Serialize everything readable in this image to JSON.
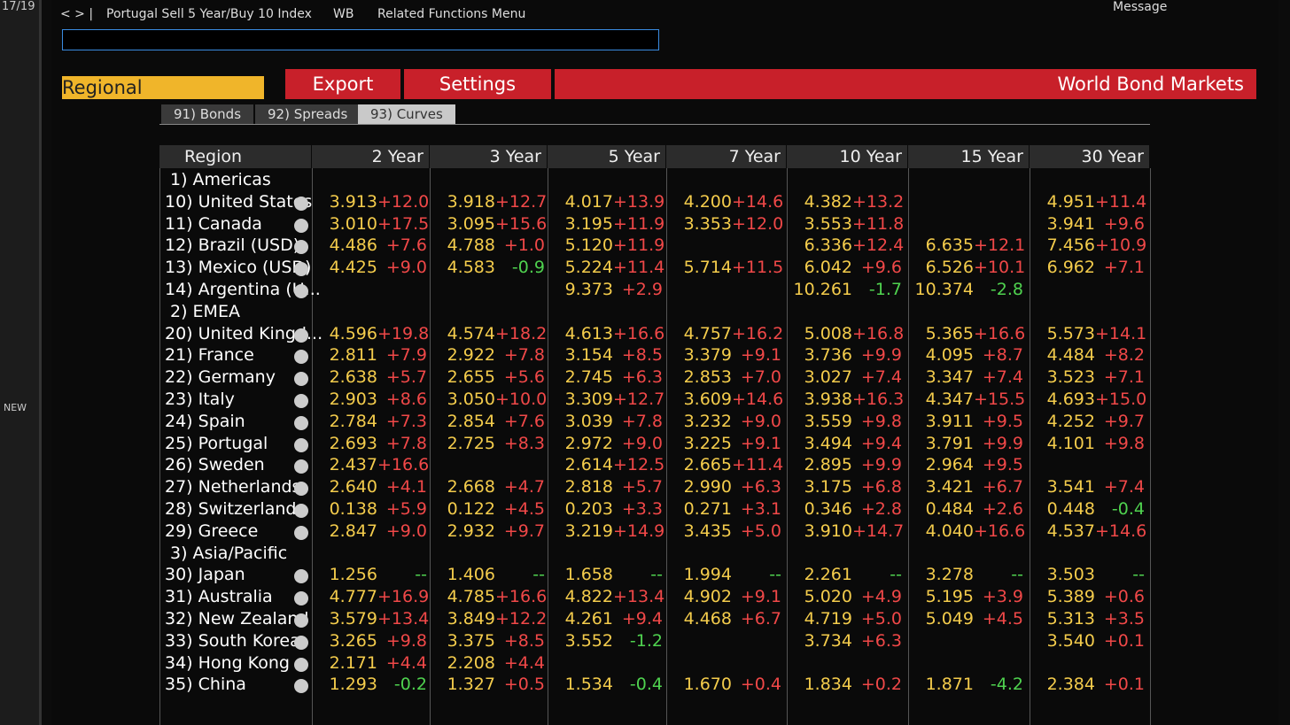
{
  "side": {
    "counter": "17/19",
    "badge": "NEW"
  },
  "toolbar": {
    "title": "Portugal Sell 5 Year/Buy 10 Index",
    "menu1": "WB",
    "menu2": "Related Functions Menu",
    "message": "Message"
  },
  "actions": {
    "dropdown": "Regional",
    "export": "Export",
    "settings": "Settings",
    "page_title": "World Bond Markets"
  },
  "tabs": [
    "91) Bonds",
    "92) Spreads",
    "93) Curves"
  ],
  "table": {
    "header": [
      "Region",
      "2 Year",
      "3 Year",
      "5 Year",
      "7 Year",
      "10 Year",
      "15 Year",
      "30 Year"
    ],
    "groups": [
      {
        "name": "1) Americas",
        "rows": [
          {
            "name": "10) United States",
            "cells": [
              [
                "3.913",
                "+12.0"
              ],
              [
                "3.918",
                "+12.7"
              ],
              [
                "4.017",
                "+13.9"
              ],
              [
                "4.200",
                "+14.6"
              ],
              [
                "4.382",
                "+13.2"
              ],
              null,
              [
                "4.951",
                "+11.4"
              ]
            ]
          },
          {
            "name": "11) Canada",
            "cells": [
              [
                "3.010",
                "+17.5"
              ],
              [
                "3.095",
                "+15.6"
              ],
              [
                "3.195",
                "+11.9"
              ],
              [
                "3.353",
                "+12.0"
              ],
              [
                "3.553",
                "+11.8"
              ],
              null,
              [
                "3.941",
                "+9.6"
              ]
            ]
          },
          {
            "name": "12) Brazil (USD)",
            "cells": [
              [
                "4.486",
                "+7.6"
              ],
              [
                "4.788",
                "+1.0"
              ],
              [
                "5.120",
                "+11.9"
              ],
              null,
              [
                "6.336",
                "+12.4"
              ],
              [
                "6.635",
                "+12.1"
              ],
              [
                "7.456",
                "+10.9"
              ]
            ]
          },
          {
            "name": "13) Mexico (USD)",
            "cells": [
              [
                "4.425",
                "+9.0"
              ],
              [
                "4.583",
                "-0.9"
              ],
              [
                "5.224",
                "+11.4"
              ],
              [
                "5.714",
                "+11.5"
              ],
              [
                "6.042",
                "+9.6"
              ],
              [
                "6.526",
                "+10.1"
              ],
              [
                "6.962",
                "+7.1"
              ]
            ]
          },
          {
            "name": "14) Argentina (U...",
            "cells": [
              null,
              null,
              [
                "9.373",
                "+2.9"
              ],
              null,
              [
                "10.261",
                "-1.7"
              ],
              [
                "10.374",
                "-2.8"
              ],
              null
            ]
          }
        ]
      },
      {
        "name": "2) EMEA",
        "rows": [
          {
            "name": "20) United Kingd...",
            "cells": [
              [
                "4.596",
                "+19.8"
              ],
              [
                "4.574",
                "+18.2"
              ],
              [
                "4.613",
                "+16.6"
              ],
              [
                "4.757",
                "+16.2"
              ],
              [
                "5.008",
                "+16.8"
              ],
              [
                "5.365",
                "+16.6"
              ],
              [
                "5.573",
                "+14.1"
              ]
            ]
          },
          {
            "name": "21) France",
            "cells": [
              [
                "2.811",
                "+7.9"
              ],
              [
                "2.922",
                "+7.8"
              ],
              [
                "3.154",
                "+8.5"
              ],
              [
                "3.379",
                "+9.1"
              ],
              [
                "3.736",
                "+9.9"
              ],
              [
                "4.095",
                "+8.7"
              ],
              [
                "4.484",
                "+8.2"
              ]
            ]
          },
          {
            "name": "22) Germany",
            "cells": [
              [
                "2.638",
                "+5.7"
              ],
              [
                "2.655",
                "+5.6"
              ],
              [
                "2.745",
                "+6.3"
              ],
              [
                "2.853",
                "+7.0"
              ],
              [
                "3.027",
                "+7.4"
              ],
              [
                "3.347",
                "+7.4"
              ],
              [
                "3.523",
                "+7.1"
              ]
            ]
          },
          {
            "name": "23) Italy",
            "cells": [
              [
                "2.903",
                "+8.6"
              ],
              [
                "3.050",
                "+10.0"
              ],
              [
                "3.309",
                "+12.7"
              ],
              [
                "3.609",
                "+14.6"
              ],
              [
                "3.938",
                "+16.3"
              ],
              [
                "4.347",
                "+15.5"
              ],
              [
                "4.693",
                "+15.0"
              ]
            ]
          },
          {
            "name": "24) Spain",
            "cells": [
              [
                "2.784",
                "+7.3"
              ],
              [
                "2.854",
                "+7.6"
              ],
              [
                "3.039",
                "+7.8"
              ],
              [
                "3.232",
                "+9.0"
              ],
              [
                "3.559",
                "+9.8"
              ],
              [
                "3.911",
                "+9.5"
              ],
              [
                "4.252",
                "+9.7"
              ]
            ]
          },
          {
            "name": "25) Portugal",
            "cells": [
              [
                "2.693",
                "+7.8"
              ],
              [
                "2.725",
                "+8.3"
              ],
              [
                "2.972",
                "+9.0"
              ],
              [
                "3.225",
                "+9.1"
              ],
              [
                "3.494",
                "+9.4"
              ],
              [
                "3.791",
                "+9.9"
              ],
              [
                "4.101",
                "+9.8"
              ]
            ]
          },
          {
            "name": "26) Sweden",
            "cells": [
              [
                "2.437",
                "+16.6"
              ],
              null,
              [
                "2.614",
                "+12.5"
              ],
              [
                "2.665",
                "+11.4"
              ],
              [
                "2.895",
                "+9.9"
              ],
              [
                "2.964",
                "+9.5"
              ],
              null
            ]
          },
          {
            "name": "27) Netherlands",
            "cells": [
              [
                "2.640",
                "+4.1"
              ],
              [
                "2.668",
                "+4.7"
              ],
              [
                "2.818",
                "+5.7"
              ],
              [
                "2.990",
                "+6.3"
              ],
              [
                "3.175",
                "+6.8"
              ],
              [
                "3.421",
                "+6.7"
              ],
              [
                "3.541",
                "+7.4"
              ]
            ]
          },
          {
            "name": "28) Switzerland",
            "cells": [
              [
                "0.138",
                "+5.9"
              ],
              [
                "0.122",
                "+4.5"
              ],
              [
                "0.203",
                "+3.3"
              ],
              [
                "0.271",
                "+3.1"
              ],
              [
                "0.346",
                "+2.8"
              ],
              [
                "0.484",
                "+2.6"
              ],
              [
                "0.448",
                "-0.4"
              ]
            ]
          },
          {
            "name": "29) Greece",
            "cells": [
              [
                "2.847",
                "+9.0"
              ],
              [
                "2.932",
                "+9.7"
              ],
              [
                "3.219",
                "+14.9"
              ],
              [
                "3.435",
                "+5.0"
              ],
              [
                "3.910",
                "+14.7"
              ],
              [
                "4.040",
                "+16.6"
              ],
              [
                "4.537",
                "+14.6"
              ]
            ]
          }
        ]
      },
      {
        "name": "3) Asia/Pacific",
        "rows": [
          {
            "name": "30) Japan",
            "cells": [
              [
                "1.256",
                "--"
              ],
              [
                "1.406",
                "--"
              ],
              [
                "1.658",
                "--"
              ],
              [
                "1.994",
                "--"
              ],
              [
                "2.261",
                "--"
              ],
              [
                "3.278",
                "--"
              ],
              [
                "3.503",
                "--"
              ]
            ]
          },
          {
            "name": "31) Australia",
            "cells": [
              [
                "4.777",
                "+16.9"
              ],
              [
                "4.785",
                "+16.6"
              ],
              [
                "4.822",
                "+13.4"
              ],
              [
                "4.902",
                "+9.1"
              ],
              [
                "5.020",
                "+4.9"
              ],
              [
                "5.195",
                "+3.9"
              ],
              [
                "5.389",
                "+0.6"
              ]
            ]
          },
          {
            "name": "32) New Zealand",
            "cells": [
              [
                "3.579",
                "+13.4"
              ],
              [
                "3.849",
                "+12.2"
              ],
              [
                "4.261",
                "+9.4"
              ],
              [
                "4.468",
                "+6.7"
              ],
              [
                "4.719",
                "+5.0"
              ],
              [
                "5.049",
                "+4.5"
              ],
              [
                "5.313",
                "+3.5"
              ]
            ]
          },
          {
            "name": "33) South Korea",
            "cells": [
              [
                "3.265",
                "+9.8"
              ],
              [
                "3.375",
                "+8.5"
              ],
              [
                "3.552",
                "-1.2"
              ],
              null,
              [
                "3.734",
                "+6.3"
              ],
              null,
              [
                "3.540",
                "+0.1"
              ]
            ]
          },
          {
            "name": "34) Hong Kong",
            "cells": [
              [
                "2.171",
                "+4.4"
              ],
              [
                "2.208",
                "+4.4"
              ],
              null,
              null,
              null,
              null,
              null
            ]
          },
          {
            "name": "35) China",
            "cells": [
              [
                "1.293",
                "-0.2"
              ],
              [
                "1.327",
                "+0.5"
              ],
              [
                "1.534",
                "-0.4"
              ],
              [
                "1.670",
                "+0.4"
              ],
              [
                "1.834",
                "+0.2"
              ],
              [
                "1.871",
                "-4.2"
              ],
              [
                "2.384",
                "+0.1"
              ]
            ]
          }
        ]
      }
    ]
  }
}
